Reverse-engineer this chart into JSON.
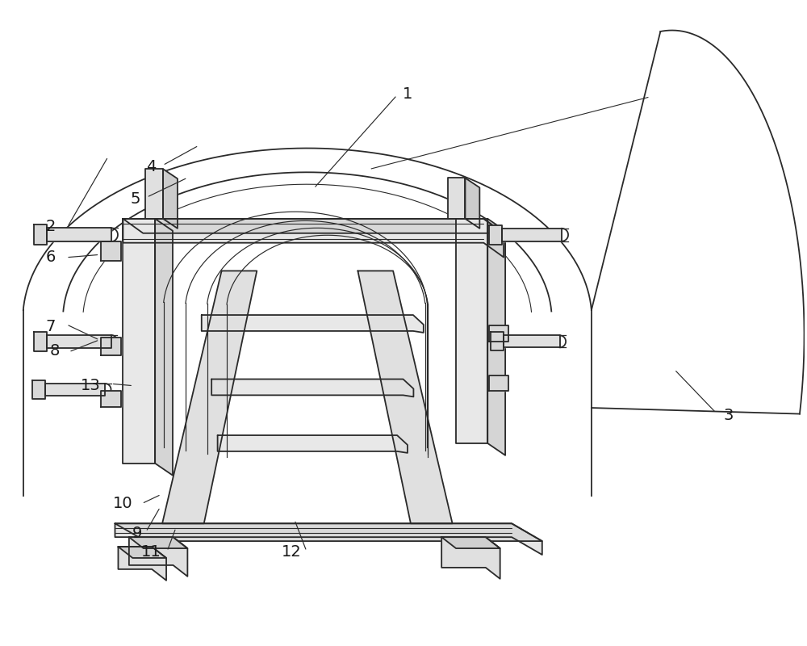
{
  "bg_color": "#ffffff",
  "line_color": "#2a2a2a",
  "label_color": "#1a1a1a",
  "lw_main": 1.3,
  "lw_thin": 0.8,
  "figsize": [
    10.0,
    8.0
  ],
  "dpi": 100
}
